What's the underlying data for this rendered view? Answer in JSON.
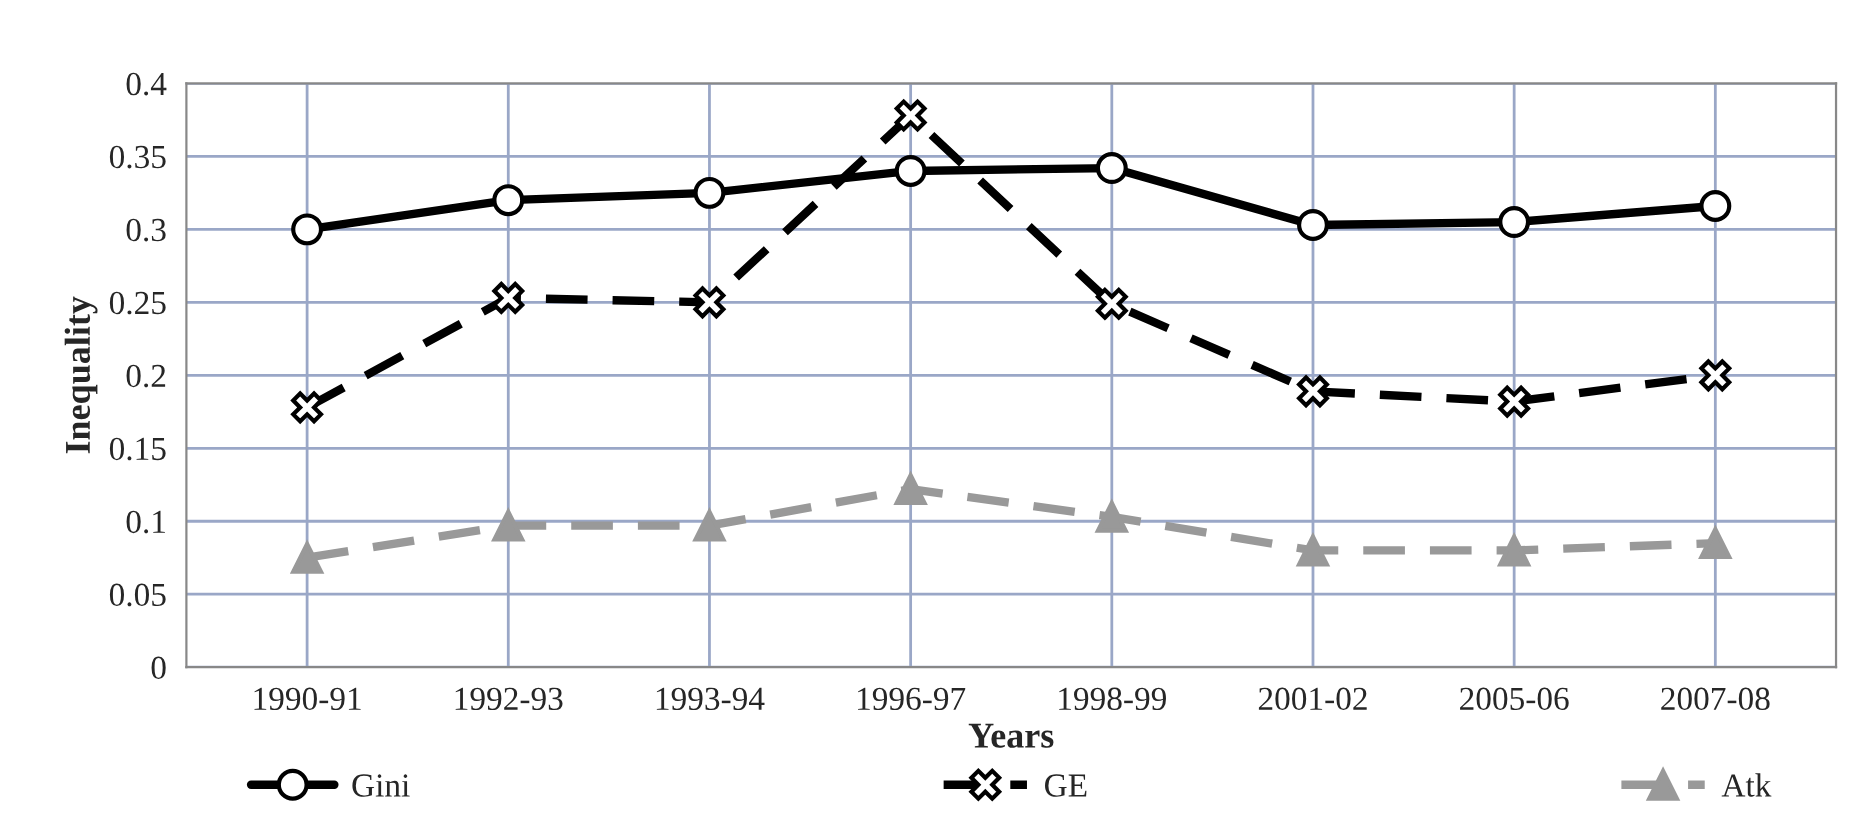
{
  "chart_data": {
    "type": "line",
    "xlabel": "Years",
    "ylabel": "Inequality",
    "categories": [
      "1990-91",
      "1992-93",
      "1993-94",
      "1996-97",
      "1998-99",
      "2001-02",
      "2005-06",
      "2007-08"
    ],
    "series": [
      {
        "name": "Gini",
        "color": "#000000",
        "marker": "circle",
        "line_style": "solid",
        "values": [
          0.3,
          0.32,
          0.325,
          0.34,
          0.342,
          0.303,
          0.305,
          0.316
        ]
      },
      {
        "name": "GE",
        "color": "#000000",
        "marker": "cross",
        "line_style": "dashed",
        "values": [
          0.178,
          0.253,
          0.25,
          0.378,
          0.249,
          0.189,
          0.182,
          0.2
        ]
      },
      {
        "name": "Atk",
        "color": "#999999",
        "marker": "triangle",
        "line_style": "dashed",
        "values": [
          0.075,
          0.097,
          0.097,
          0.122,
          0.103,
          0.08,
          0.08,
          0.085
        ]
      }
    ],
    "ylim": [
      0,
      0.4
    ],
    "yticks": [
      0,
      0.05,
      0.1,
      0.15,
      0.2,
      0.25,
      0.3,
      0.35,
      0.4
    ],
    "grid": true,
    "legend": "bottom"
  }
}
